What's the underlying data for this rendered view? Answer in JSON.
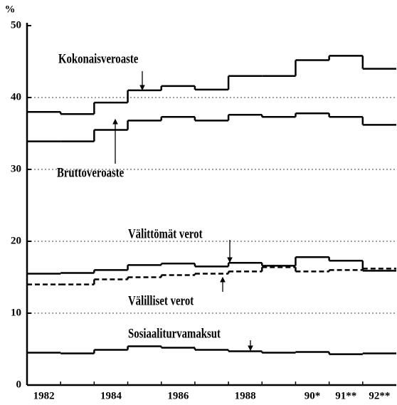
{
  "chart_data": {
    "type": "step",
    "y_label": "%",
    "categories": [
      "1982",
      null,
      "1984",
      null,
      "1986",
      null,
      "1988",
      null,
      "90*",
      "91**",
      "92**"
    ],
    "series": [
      {
        "name": "Kokonaisveroaste",
        "color": "#000000",
        "style": "solid",
        "values": [
          38.0,
          37.7,
          39.3,
          41.0,
          41.6,
          41.1,
          43.0,
          43.0,
          45.2,
          45.8,
          44.0
        ]
      },
      {
        "name": "Bruttoveroaste",
        "color": "#000000",
        "style": "solid",
        "values": [
          33.9,
          33.9,
          35.5,
          36.8,
          37.3,
          36.8,
          37.6,
          37.3,
          37.8,
          37.3,
          36.2
        ]
      },
      {
        "name": "Välittömät verot",
        "color": "#000000",
        "style": "solid",
        "values": [
          15.5,
          15.6,
          16.0,
          16.7,
          16.9,
          16.5,
          17.0,
          16.6,
          17.8,
          17.3,
          15.9
        ]
      },
      {
        "name": "Välilliset verot",
        "color": "#000000",
        "style": "dashed",
        "values": [
          14.0,
          14.0,
          14.7,
          15.0,
          15.3,
          15.5,
          15.8,
          16.4,
          15.8,
          16.0,
          16.2
        ]
      },
      {
        "name": "Sosiaaliturvamaksut",
        "color": "#000000",
        "style": "solid",
        "values": [
          4.5,
          4.4,
          4.9,
          5.4,
          5.2,
          4.9,
          4.7,
          4.5,
          4.6,
          4.3,
          4.4
        ]
      }
    ],
    "ylim": [
      0,
      50
    ],
    "yticks": [
      0,
      10,
      20,
      30,
      40,
      50
    ],
    "grid": true
  }
}
